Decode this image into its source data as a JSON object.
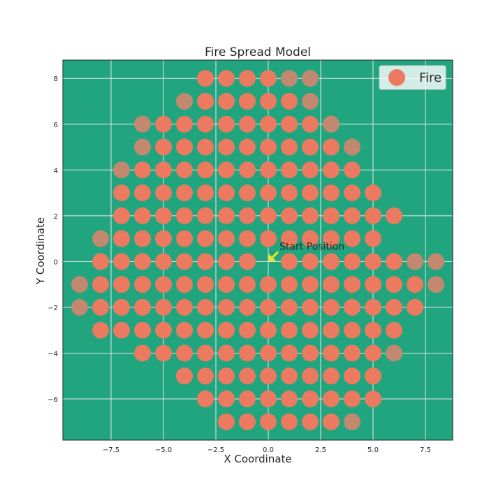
{
  "chart_data": {
    "type": "scatter",
    "title": "Fire Spread Model",
    "xlabel": "X Coordinate",
    "ylabel": "Y Coordinate",
    "xlim": [
      -9.8,
      8.8
    ],
    "ylim": [
      -7.8,
      8.8
    ],
    "x_ticks": [
      -7.5,
      -5.0,
      -2.5,
      0.0,
      2.5,
      5.0,
      7.5
    ],
    "x_tick_labels": [
      "−7.5",
      "−5.0",
      "−2.5",
      "0.0",
      "2.5",
      "5.0",
      "7.5"
    ],
    "y_ticks": [
      -6,
      -4,
      -2,
      0,
      2,
      4,
      6,
      8
    ],
    "y_tick_labels": [
      "−6",
      "−4",
      "−2",
      "0",
      "2",
      "4",
      "6",
      "8"
    ],
    "grid": true,
    "legend": {
      "placement": "top-right",
      "entries": [
        "Fire"
      ]
    },
    "colors": {
      "background": "#21a57f",
      "fire": "#ec7a60",
      "fire_faded": "#c28870",
      "grid": "#e8e8e8",
      "arrow": "#e6e62a"
    },
    "annotation": {
      "text": "Start Position",
      "point": [
        0,
        0
      ]
    },
    "series": [
      {
        "name": "Fire",
        "rows": [
          {
            "y": 8,
            "x": [
              -3,
              -2,
              -1,
              0,
              1,
              2
            ],
            "faded": [
              1,
              2
            ]
          },
          {
            "y": 7,
            "x": [
              -4,
              -3,
              -2,
              -1,
              0,
              1,
              2
            ],
            "faded": [
              -4,
              2
            ]
          },
          {
            "y": 6,
            "x": [
              -6,
              -5,
              -4,
              -3,
              -2,
              -1,
              0,
              1,
              2,
              3
            ],
            "faded": [
              -6,
              3
            ]
          },
          {
            "y": 5,
            "x": [
              -6,
              -5,
              -4,
              -3,
              -2,
              -1,
              0,
              1,
              2,
              3,
              4
            ],
            "faded": [
              -6,
              4
            ]
          },
          {
            "y": 4,
            "x": [
              -7,
              -6,
              -5,
              -4,
              -3,
              -2,
              -1,
              0,
              1,
              2,
              3,
              4
            ],
            "faded": [
              -7
            ]
          },
          {
            "y": 3,
            "x": [
              -7,
              -6,
              -5,
              -4,
              -3,
              -2,
              -1,
              0,
              1,
              2,
              3,
              4,
              5
            ],
            "faded": []
          },
          {
            "y": 2,
            "x": [
              -7,
              -6,
              -5,
              -4,
              -3,
              -2,
              -1,
              0,
              1,
              2,
              3,
              4,
              5,
              6
            ],
            "faded": []
          },
          {
            "y": 1,
            "x": [
              -8,
              -7,
              -6,
              -5,
              -4,
              -3,
              -2,
              -1,
              0,
              1,
              2,
              3,
              4,
              5
            ],
            "faded": [
              -8
            ]
          },
          {
            "y": 0,
            "x": [
              -8,
              -7,
              -6,
              -5,
              -4,
              -3,
              -2,
              -1,
              1,
              2,
              3,
              4,
              5,
              6,
              7,
              8
            ],
            "faded": [
              7,
              8
            ]
          },
          {
            "y": -1,
            "x": [
              -9,
              -8,
              -7,
              -6,
              -5,
              -4,
              -3,
              -2,
              -1,
              0,
              1,
              2,
              3,
              4,
              5,
              6,
              7,
              8
            ],
            "faded": [
              -9,
              8
            ]
          },
          {
            "y": -2,
            "x": [
              -9,
              -8,
              -7,
              -6,
              -5,
              -4,
              -3,
              -2,
              -1,
              0,
              1,
              2,
              3,
              4,
              5,
              6,
              7
            ],
            "faded": [
              -9
            ]
          },
          {
            "y": -3,
            "x": [
              -8,
              -7,
              -6,
              -5,
              -4,
              -3,
              -2,
              -1,
              0,
              1,
              2,
              3,
              4,
              5,
              6
            ],
            "faded": []
          },
          {
            "y": -4,
            "x": [
              -6,
              -5,
              -4,
              -3,
              -2,
              -1,
              0,
              1,
              2,
              3,
              4,
              5,
              6
            ],
            "faded": [
              6
            ]
          },
          {
            "y": -5,
            "x": [
              -4,
              -3,
              -2,
              -1,
              0,
              1,
              2,
              3,
              4,
              5
            ],
            "faded": []
          },
          {
            "y": -6,
            "x": [
              -3,
              -2,
              -1,
              0,
              1,
              2,
              3,
              4,
              5
            ],
            "faded": []
          },
          {
            "y": -7,
            "x": [
              -2,
              -1,
              0,
              1,
              2,
              3,
              4
            ],
            "faded": [
              4
            ]
          }
        ]
      }
    ]
  }
}
